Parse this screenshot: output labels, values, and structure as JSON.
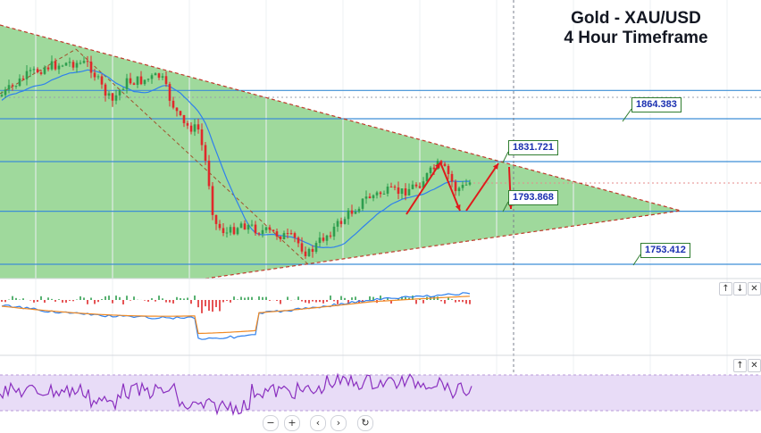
{
  "title": {
    "line1": "Gold - XAU/USD",
    "line2": "4 Hour Timeframe"
  },
  "colors": {
    "triangle_fill": "#5fbf5a",
    "hline": "#3d8fd6",
    "trend_dashed": "#c0392b",
    "arrows": "#e0191b",
    "bull": "#2e9e4e",
    "bear": "#e0292b",
    "macd_line": "#2f80ed",
    "signal_line": "#f08a24",
    "rsi_line": "#8a2fbf",
    "rsi_band": "#e8dcf7"
  },
  "chart_data": {
    "type": "candlestick",
    "instrument": "XAU/USD",
    "timeframe": "4 Hour",
    "price_labels": [
      {
        "text": "1864.383",
        "value": 1864.383
      },
      {
        "text": "1831.721",
        "value": 1831.721
      },
      {
        "text": "1793.868",
        "value": 1793.868
      },
      {
        "text": "1753.412",
        "value": 1753.412
      }
    ],
    "horizontal_levels": [
      1886,
      1864.383,
      1831.721,
      1793.868,
      1753.412
    ],
    "moving_average": "single moving average line",
    "triangle": {
      "upper_start": 1900,
      "apex": 1793.868,
      "lower_start": 1745
    },
    "indicators": [
      "MACD",
      "RSI"
    ]
  },
  "controls": {
    "macd_pane": [
      "↑",
      "↓",
      "✕"
    ],
    "rsi_pane": [
      "↑",
      "✕"
    ],
    "nav": [
      "−",
      "+",
      "‹",
      "›",
      "↻"
    ]
  }
}
